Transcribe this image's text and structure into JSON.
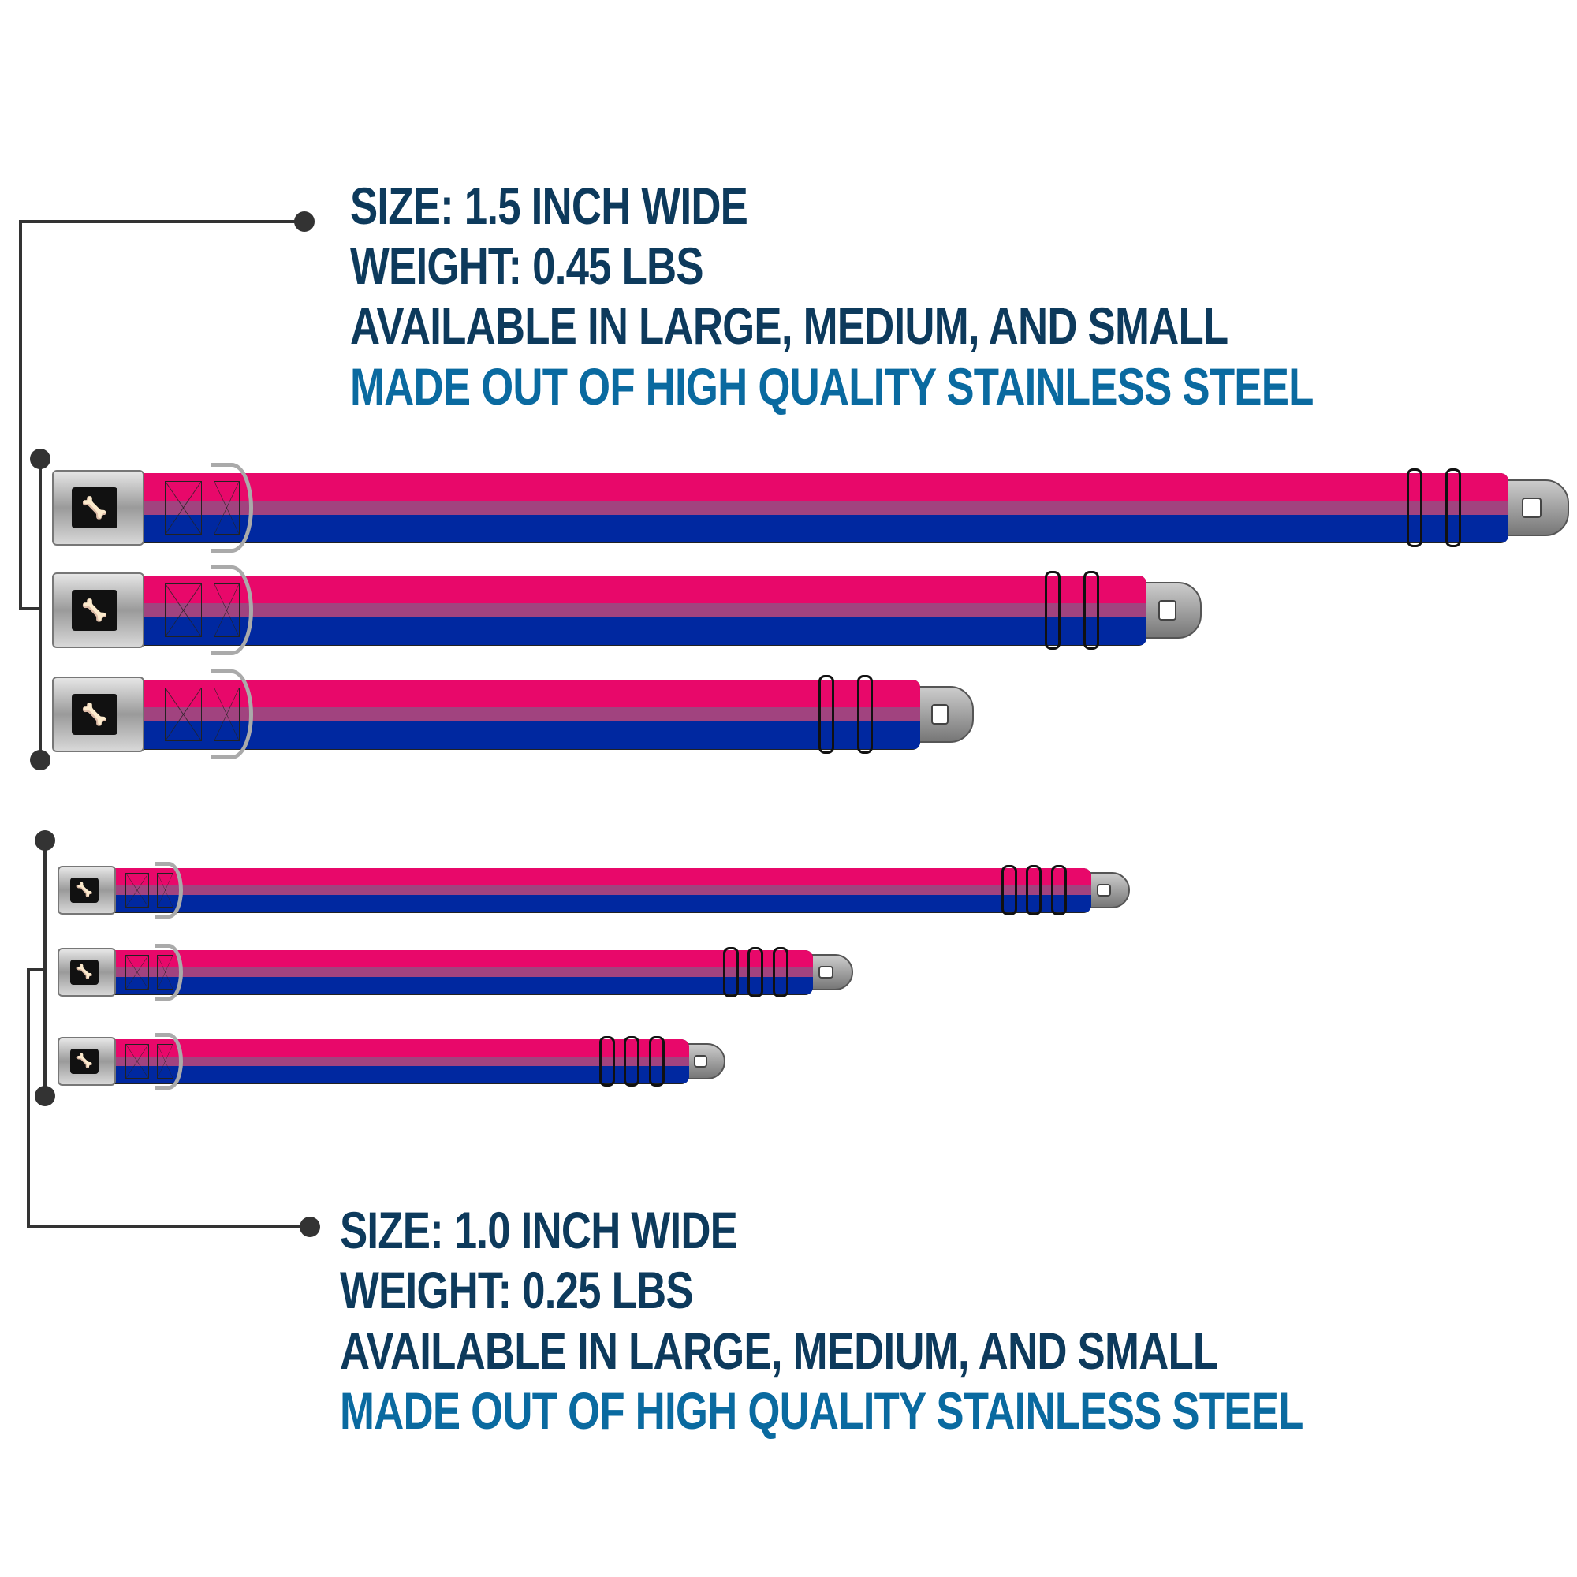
{
  "colors": {
    "heading": "#0d3a5c",
    "accent": "#0a6aa0",
    "pink": "#e8086a",
    "purple": "#a1437f",
    "blue": "#0028a0"
  },
  "wide_spec": {
    "size": "SIZE: 1.5 INCH WIDE",
    "weight": "WEIGHT: 0.45 LBS",
    "availability": "AVAILABLE IN LARGE, MEDIUM, AND SMALL",
    "material": "MADE OUT OF HIGH QUALITY STAINLESS STEEL"
  },
  "narrow_spec": {
    "size": "SIZE: 1.0 INCH WIDE",
    "weight": "WEIGHT: 0.25 LBS",
    "availability": "AVAILABLE IN LARGE, MEDIUM, AND SMALL",
    "material": "MADE OUT OF HIGH QUALITY STAINLESS STEEL"
  },
  "collars": {
    "wide": [
      "large",
      "medium",
      "small"
    ],
    "narrow": [
      "large",
      "medium",
      "small"
    ]
  },
  "icons": {
    "buckle_logo": "bone-icon"
  }
}
